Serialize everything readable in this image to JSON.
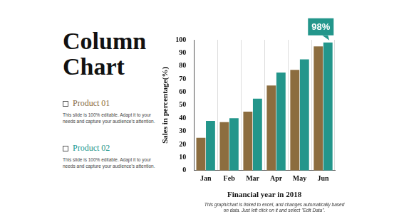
{
  "chart_data": {
    "type": "bar",
    "title": "Column Chart",
    "categories": [
      "Jan",
      "Feb",
      "Mar",
      "Apr",
      "May",
      "Jun"
    ],
    "series": [
      {
        "name": "Product 01",
        "color": "#8c6d3f",
        "values": [
          25,
          37,
          45,
          65,
          77,
          95
        ],
        "description": "This slide is 100% editable. Adapt it to your needs and capture your audience's attention."
      },
      {
        "name": "Product 02",
        "color": "#23968b",
        "values": [
          38,
          40,
          55,
          75,
          85,
          98
        ],
        "description": "This slide is 100% editable. Adapt it to your needs and capture your audience's attention."
      }
    ],
    "y_label": "Sales in percentage(%)",
    "x_label": "Financial year in 2018",
    "ylim": [
      0,
      100
    ],
    "yticks": [
      0,
      10,
      20,
      30,
      40,
      50,
      60,
      70,
      80,
      90,
      100
    ],
    "grid": "x",
    "legend": "left",
    "annotations": [
      {
        "text": "98%",
        "category": "Jun",
        "series": "Product 02"
      }
    ],
    "note": "This graph/chart is linked to excel, and changes automatically based on data. Just left click on it and select \"Edit Data\"."
  }
}
